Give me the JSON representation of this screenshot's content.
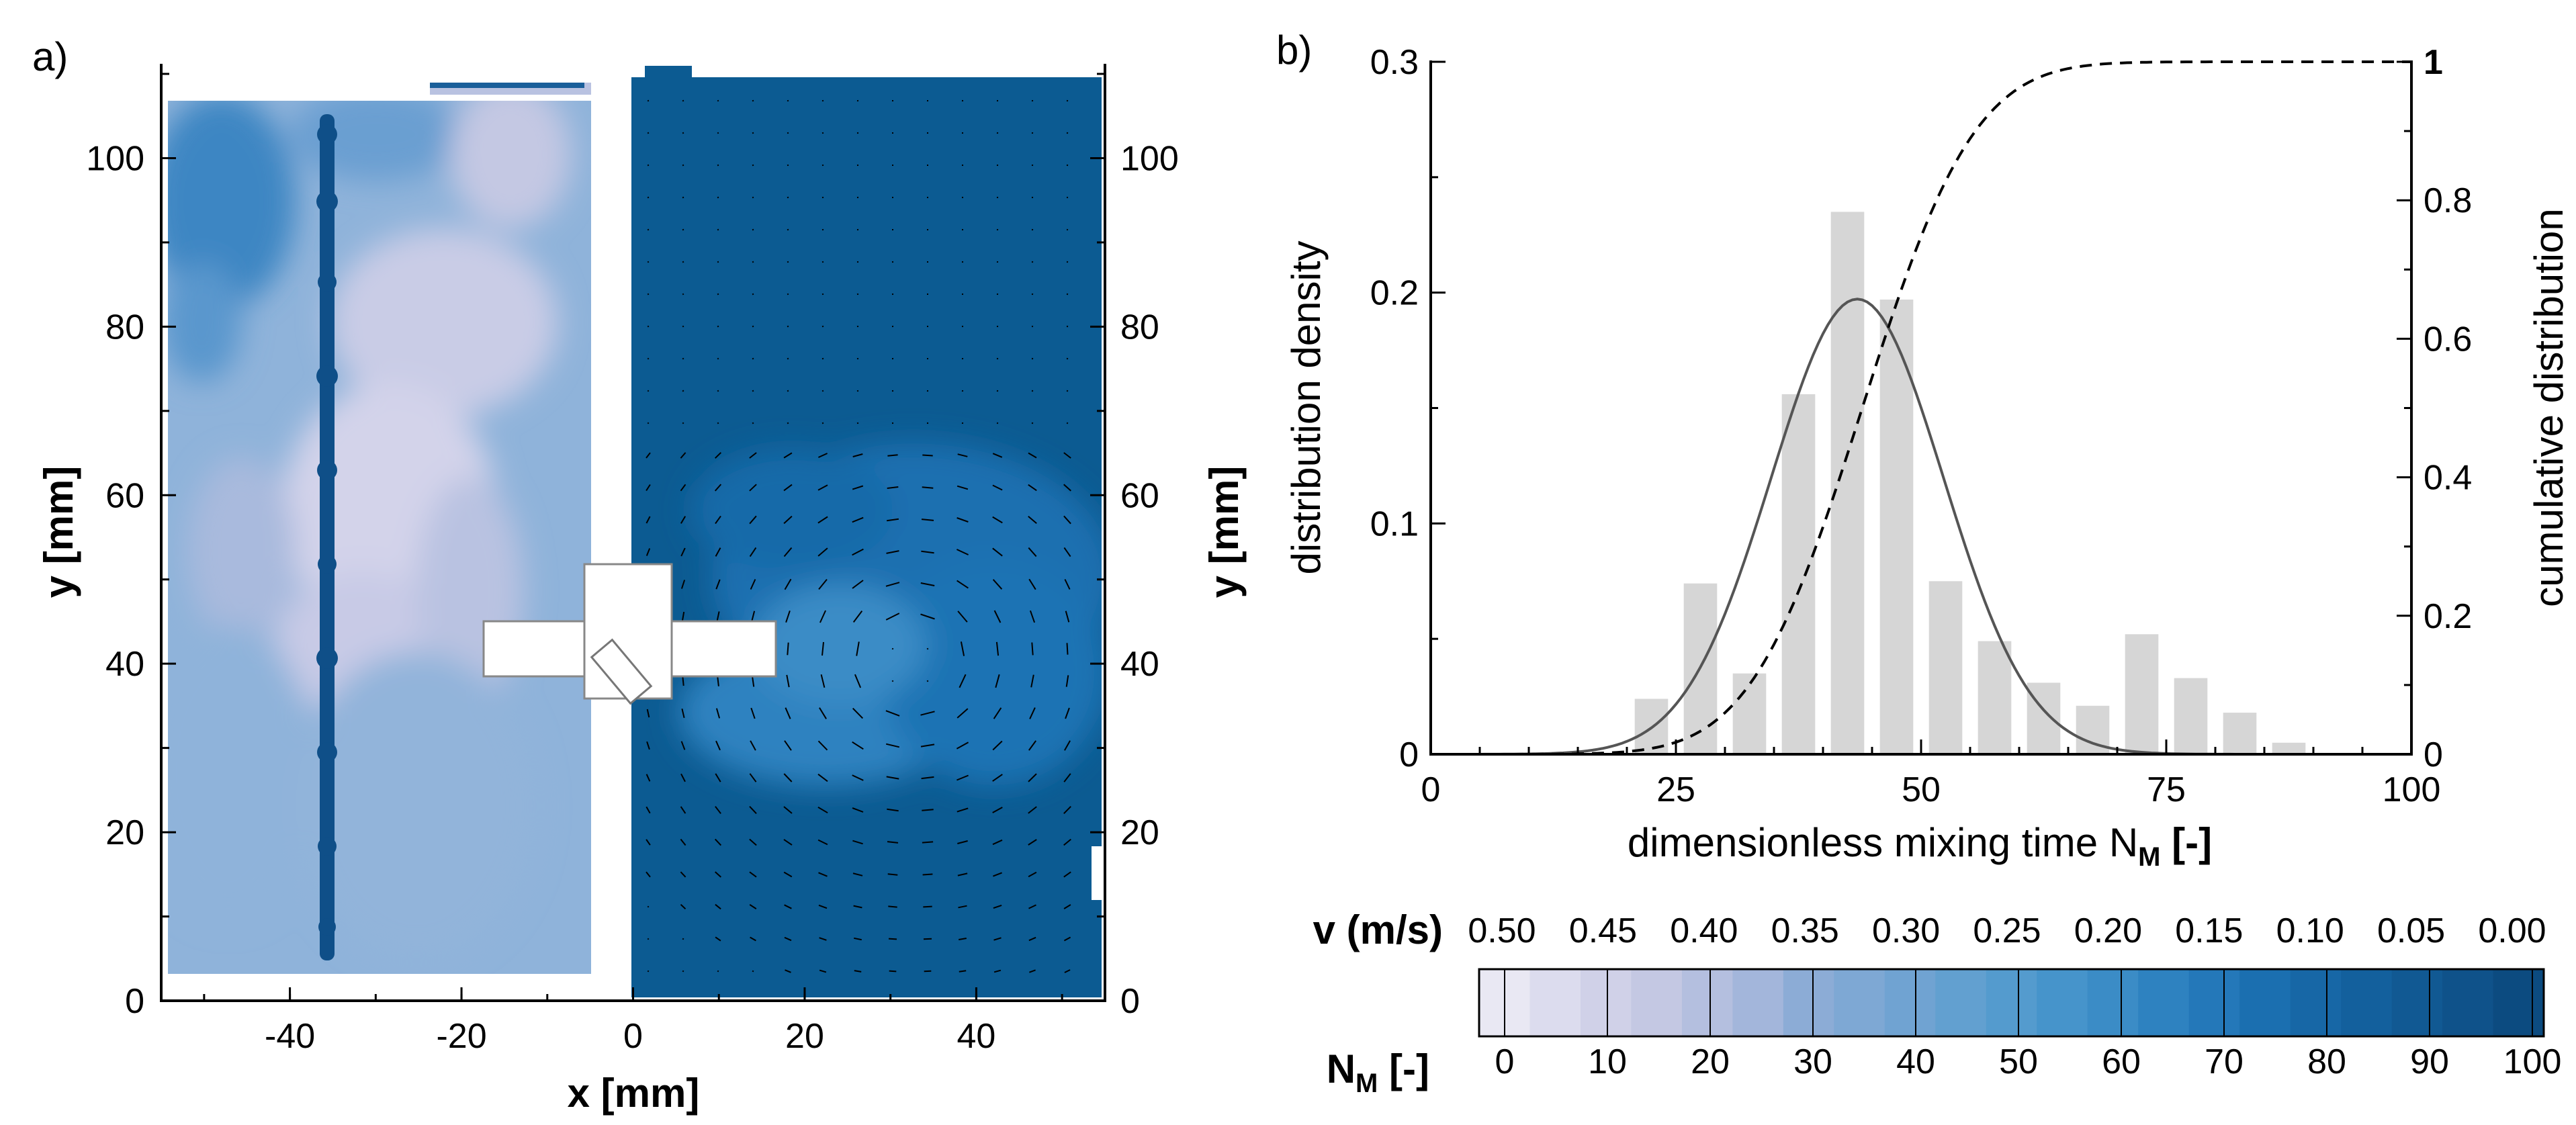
{
  "panel_a": {
    "label": "a)",
    "xlabel": "x [mm]",
    "ylabel_left": "y [mm]",
    "ylabel_right": "y [mm]",
    "xticks": [
      "-40",
      "-20",
      "0",
      "20",
      "40"
    ],
    "yticks": [
      "0",
      "20",
      "40",
      "60",
      "80",
      "100"
    ],
    "x_range": [
      -55,
      55
    ],
    "y_range": [
      0,
      110
    ]
  },
  "panel_b": {
    "label": "b)",
    "xticks": [
      "0",
      "25",
      "50",
      "75",
      "100"
    ],
    "yticks_left": [
      "0",
      "0.1",
      "0.2",
      "0.3"
    ],
    "yticks_right": [
      "0",
      "0.2",
      "0.4",
      "0.6",
      "0.8",
      "1"
    ]
  },
  "colorbar": {
    "v_label": "v (m/s)",
    "v_values": [
      "0.50",
      "0.45",
      "0.40",
      "0.35",
      "0.30",
      "0.25",
      "0.20",
      "0.15",
      "0.10",
      "0.05",
      "0.00"
    ],
    "nm_label": "N",
    "nm_sub": "M",
    "nm_suffix": " [-]",
    "nm_values": [
      "0",
      "10",
      "20",
      "30",
      "40",
      "50",
      "60",
      "70",
      "80",
      "90",
      "100"
    ],
    "colors": [
      "#e9e8f3",
      "#dcdcee",
      "#d0d1e8",
      "#c4c8e3",
      "#b4bfdf",
      "#a3b6db",
      "#8cacd6",
      "#7ea8d4",
      "#70a3d2",
      "#62a0d0",
      "#549bce",
      "#4694cb",
      "#3b8cc6",
      "#2e82c0",
      "#2478b9",
      "#1b6fb0",
      "#1767a6",
      "#13609d",
      "#115993",
      "#0f528a",
      "#0c4b80"
    ]
  },
  "chart_data": [
    {
      "type": "heatmap",
      "title": "",
      "xlabel": "x [mm]",
      "ylabel": "y [mm]",
      "xlim": [
        -55,
        55
      ],
      "ylim": [
        0,
        110
      ],
      "left_half": "dimensionless mixing time N_M field (x < 0)",
      "right_half": "velocity magnitude v field with vector arrows (x > 0)"
    },
    {
      "type": "bar",
      "title": "",
      "xlabel": "dimensionless mixing time N_M [-]",
      "ylabel": "distribution density",
      "ylabel_right": "cumulative distribution",
      "xlim": [
        0,
        100
      ],
      "ylim": [
        0,
        0.3
      ],
      "ylim_right": [
        0,
        1
      ],
      "x": [
        22.5,
        27.5,
        32.5,
        37.5,
        42.5,
        47.5,
        52.5,
        57.5,
        62.5,
        67.5,
        72.5,
        77.5,
        82.5,
        87.5
      ],
      "values": [
        0.024,
        0.074,
        0.035,
        0.156,
        0.235,
        0.197,
        0.075,
        0.049,
        0.031,
        0.021,
        0.052,
        0.033,
        0.018,
        0.005
      ],
      "series": [
        {
          "name": "normal fit density",
          "type": "line",
          "style": "solid",
          "mean": 43.5,
          "std": 8.8
        },
        {
          "name": "cumulative distribution",
          "type": "line",
          "style": "dashed",
          "axis": "right",
          "mean": 44,
          "std": 9
        }
      ]
    }
  ]
}
